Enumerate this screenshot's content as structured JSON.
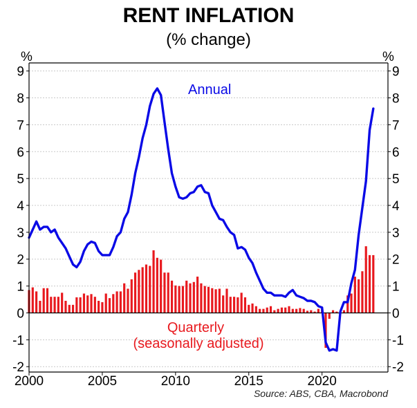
{
  "chart_data": {
    "type": "bar+line",
    "title": "RENT INFLATION",
    "subtitle": "(% change)",
    "source": "Source: ABS, CBA, Macrobond",
    "ylabel_left": "%",
    "ylabel_right": "%",
    "ylim": [
      -2.2,
      9.3
    ],
    "yticks": [
      9,
      8,
      7,
      6,
      5,
      4,
      3,
      2,
      1,
      0,
      -1,
      -2
    ],
    "xlim": [
      2000,
      2024.5
    ],
    "xticks": [
      2000,
      2005,
      2010,
      2015,
      2020
    ],
    "grid": true,
    "colors": {
      "annual": "#0a0ae6",
      "quarterly": "#e8191e",
      "grid": "#c8c8c8"
    },
    "annual": {
      "name": "Annual",
      "x": [
        2000.0,
        2000.25,
        2000.5,
        2000.75,
        2001.0,
        2001.25,
        2001.5,
        2001.75,
        2002.0,
        2002.25,
        2002.5,
        2002.75,
        2003.0,
        2003.25,
        2003.5,
        2003.75,
        2004.0,
        2004.25,
        2004.5,
        2004.75,
        2005.0,
        2005.25,
        2005.5,
        2005.75,
        2006.0,
        2006.25,
        2006.5,
        2006.75,
        2007.0,
        2007.25,
        2007.5,
        2007.75,
        2008.0,
        2008.25,
        2008.5,
        2008.75,
        2009.0,
        2009.25,
        2009.5,
        2009.75,
        2010.0,
        2010.25,
        2010.5,
        2010.75,
        2011.0,
        2011.25,
        2011.5,
        2011.75,
        2012.0,
        2012.25,
        2012.5,
        2012.75,
        2013.0,
        2013.25,
        2013.5,
        2013.75,
        2014.0,
        2014.25,
        2014.5,
        2014.75,
        2015.0,
        2015.25,
        2015.5,
        2015.75,
        2016.0,
        2016.25,
        2016.5,
        2016.75,
        2017.0,
        2017.25,
        2017.5,
        2017.75,
        2018.0,
        2018.25,
        2018.5,
        2018.75,
        2019.0,
        2019.25,
        2019.5,
        2019.75,
        2020.0,
        2020.25,
        2020.5,
        2020.75,
        2021.0,
        2021.25,
        2021.5,
        2021.75,
        2022.0,
        2022.25,
        2022.5,
        2022.75,
        2023.0,
        2023.25,
        2023.5
      ],
      "values": [
        2.8,
        3.1,
        3.4,
        3.1,
        3.2,
        3.2,
        3.0,
        3.1,
        2.8,
        2.6,
        2.4,
        2.1,
        1.8,
        1.7,
        1.9,
        2.3,
        2.55,
        2.65,
        2.6,
        2.3,
        2.15,
        2.15,
        2.15,
        2.45,
        2.85,
        3.0,
        3.5,
        3.75,
        4.4,
        5.2,
        5.8,
        6.5,
        7.0,
        7.7,
        8.15,
        8.35,
        8.1,
        7.1,
        6.1,
        5.2,
        4.7,
        4.3,
        4.25,
        4.3,
        4.45,
        4.5,
        4.7,
        4.75,
        4.5,
        4.45,
        4.0,
        3.75,
        3.5,
        3.45,
        3.2,
        3.0,
        2.9,
        2.4,
        2.45,
        2.35,
        2.05,
        1.85,
        1.5,
        1.2,
        0.9,
        0.75,
        0.75,
        0.65,
        0.65,
        0.65,
        0.6,
        0.75,
        0.85,
        0.65,
        0.6,
        0.55,
        0.45,
        0.45,
        0.4,
        0.25,
        0.2,
        -1.1,
        -1.4,
        -1.35,
        -1.4,
        0.05,
        0.4,
        0.4,
        1.1,
        1.6,
        2.9,
        3.9,
        4.9,
        6.8,
        7.6
      ]
    },
    "quarterly": {
      "name": "Quarterly (seasonally adjusted)",
      "label_line1": "Quarterly",
      "label_line2": "(seasonally adjusted)",
      "x": [
        2000.0,
        2000.25,
        2000.5,
        2000.75,
        2001.0,
        2001.25,
        2001.5,
        2001.75,
        2002.0,
        2002.25,
        2002.5,
        2002.75,
        2003.0,
        2003.25,
        2003.5,
        2003.75,
        2004.0,
        2004.25,
        2004.5,
        2004.75,
        2005.0,
        2005.25,
        2005.5,
        2005.75,
        2006.0,
        2006.25,
        2006.5,
        2006.75,
        2007.0,
        2007.25,
        2007.5,
        2007.75,
        2008.0,
        2008.25,
        2008.5,
        2008.75,
        2009.0,
        2009.25,
        2009.5,
        2009.75,
        2010.0,
        2010.25,
        2010.5,
        2010.75,
        2011.0,
        2011.25,
        2011.5,
        2011.75,
        2012.0,
        2012.25,
        2012.5,
        2012.75,
        2013.0,
        2013.25,
        2013.5,
        2013.75,
        2014.0,
        2014.25,
        2014.5,
        2014.75,
        2015.0,
        2015.25,
        2015.5,
        2015.75,
        2016.0,
        2016.25,
        2016.5,
        2016.75,
        2017.0,
        2017.25,
        2017.5,
        2017.75,
        2018.0,
        2018.25,
        2018.5,
        2018.75,
        2019.0,
        2019.25,
        2019.5,
        2019.75,
        2020.0,
        2020.25,
        2020.5,
        2020.75,
        2021.0,
        2021.25,
        2021.5,
        2021.75,
        2022.0,
        2022.25,
        2022.5,
        2022.75,
        2023.0,
        2023.25,
        2023.5
      ],
      "values": [
        0.85,
        0.95,
        0.8,
        0.45,
        0.92,
        0.92,
        0.6,
        0.6,
        0.6,
        0.75,
        0.45,
        0.3,
        0.3,
        0.58,
        0.58,
        0.72,
        0.65,
        0.7,
        0.6,
        0.45,
        0.4,
        0.72,
        0.55,
        0.7,
        0.8,
        0.8,
        1.1,
        0.9,
        1.25,
        1.5,
        1.6,
        1.7,
        1.8,
        1.75,
        2.33,
        2.05,
        1.98,
        1.5,
        1.5,
        1.2,
        1.02,
        1.0,
        1.0,
        1.2,
        1.1,
        1.15,
        1.35,
        1.1,
        1.0,
        0.97,
        0.92,
        0.88,
        0.9,
        0.65,
        0.9,
        0.6,
        0.6,
        0.58,
        0.75,
        0.58,
        0.3,
        0.35,
        0.25,
        0.15,
        0.15,
        0.2,
        0.25,
        0.1,
        0.15,
        0.2,
        0.2,
        0.25,
        0.15,
        0.15,
        0.18,
        0.15,
        0.08,
        0.1,
        0.05,
        0.15,
        0.15,
        -1.3,
        -0.22,
        0.1,
        0.05,
        0.05,
        0.1,
        0.65,
        0.72,
        1.35,
        1.25,
        1.55,
        2.48,
        2.15,
        2.15
      ]
    }
  }
}
